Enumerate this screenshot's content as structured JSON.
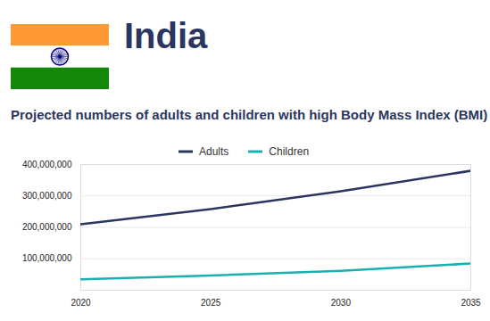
{
  "chart_data": {
    "type": "line",
    "title": "India",
    "subtitle": "Projected numbers of adults and children with high Body Mass Index (BMI)",
    "x": [
      2020,
      2025,
      2030,
      2035
    ],
    "series": [
      {
        "name": "Adults",
        "color": "#2b3660",
        "values": [
          210000000,
          258000000,
          315000000,
          380000000
        ]
      },
      {
        "name": "Children",
        "color": "#1ab0b0",
        "values": [
          35000000,
          47000000,
          62000000,
          85000000
        ]
      }
    ],
    "xlim": [
      2020,
      2035
    ],
    "xticks": [
      2020,
      2025,
      2030,
      2035
    ],
    "ylim": [
      0,
      400000000
    ],
    "yticks": [
      {
        "value": 100000000,
        "label": "100,000,000"
      },
      {
        "value": 200000000,
        "label": "200,000,000"
      },
      {
        "value": 300000000,
        "label": "300,000,000"
      },
      {
        "value": 400000000,
        "label": "400,000,000"
      }
    ],
    "grid": true,
    "legend": "top"
  }
}
